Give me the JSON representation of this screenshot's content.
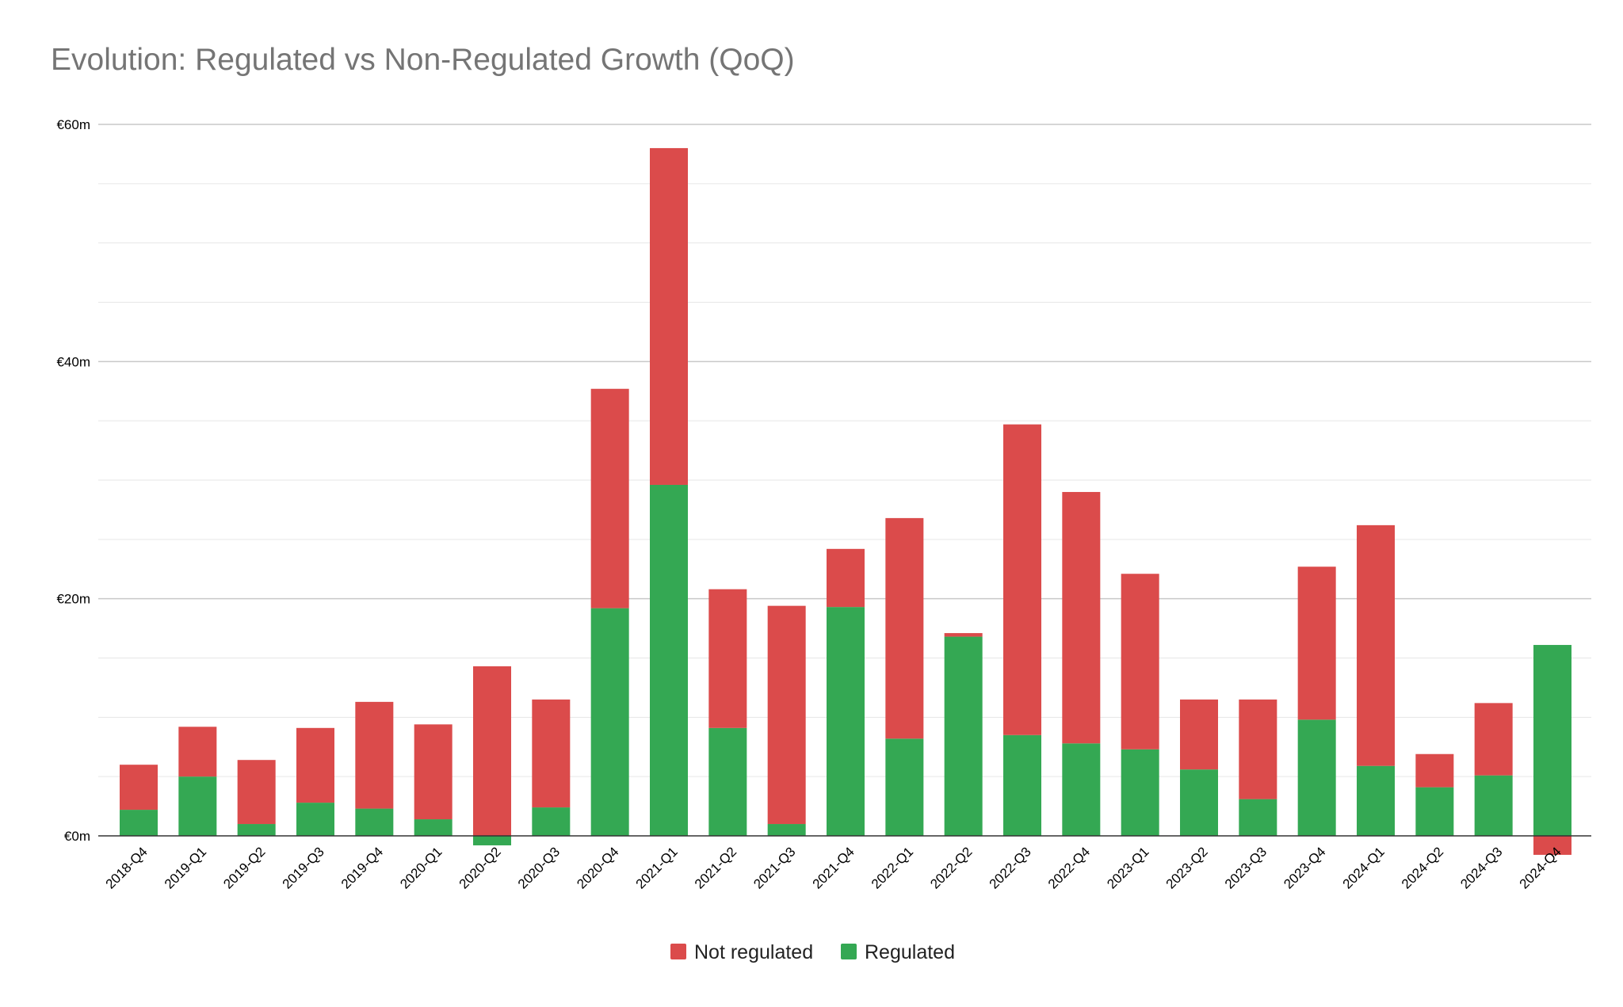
{
  "chart_data": {
    "type": "bar",
    "stacked": true,
    "title": "Evolution: Regulated vs Non-Regulated Growth (QoQ)",
    "xlabel": "",
    "ylabel": "",
    "ylim": [
      -2,
      60
    ],
    "yticks": [
      {
        "value": 0,
        "label": "€0m"
      },
      {
        "value": 20,
        "label": "€20m"
      },
      {
        "value": 40,
        "label": "€40m"
      },
      {
        "value": 60,
        "label": "€60m"
      }
    ],
    "minor_grid_step": 5,
    "grid": true,
    "legend_position": "bottom",
    "categories": [
      "2018-Q4",
      "2019-Q1",
      "2019-Q2",
      "2019-Q3",
      "2019-Q4",
      "2020-Q1",
      "2020-Q2",
      "2020-Q3",
      "2020-Q4",
      "2021-Q1",
      "2021-Q2",
      "2021-Q3",
      "2021-Q4",
      "2022-Q1",
      "2022-Q2",
      "2022-Q3",
      "2022-Q4",
      "2023-Q1",
      "2023-Q2",
      "2023-Q3",
      "2023-Q4",
      "2024-Q1",
      "2024-Q2",
      "2024-Q3",
      "2024-Q4"
    ],
    "series": [
      {
        "name": "Regulated",
        "color": "#34a853",
        "values": [
          2.2,
          5.0,
          1.0,
          2.8,
          2.3,
          1.4,
          -0.8,
          2.4,
          19.2,
          29.6,
          9.1,
          1.0,
          19.3,
          8.2,
          16.8,
          8.5,
          7.8,
          7.3,
          5.6,
          3.1,
          9.8,
          5.9,
          4.1,
          5.1,
          16.1
        ]
      },
      {
        "name": "Not regulated",
        "color": "#db4b4b",
        "values": [
          3.8,
          4.2,
          5.4,
          6.3,
          9.0,
          8.0,
          14.3,
          9.1,
          18.5,
          28.4,
          11.7,
          18.4,
          4.9,
          18.6,
          0.3,
          26.2,
          21.2,
          14.8,
          5.9,
          8.4,
          12.9,
          20.3,
          2.8,
          6.1,
          -1.6
        ]
      }
    ],
    "legend": [
      {
        "name": "Not regulated",
        "color": "#db4b4b"
      },
      {
        "name": "Regulated",
        "color": "#34a853"
      }
    ]
  }
}
